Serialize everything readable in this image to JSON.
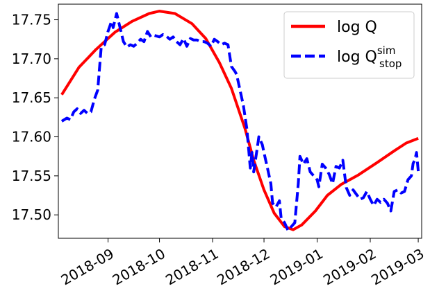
{
  "chart_data": {
    "type": "line",
    "title": "",
    "xlabel": "",
    "ylabel": "",
    "xlim": [
      "2018-08-03",
      "2019-03-03"
    ],
    "ylim": [
      17.47,
      17.77
    ],
    "grid": false,
    "legend_position": "top-right",
    "x_ticks": [
      "2018-09-01",
      "2018-10-01",
      "2018-11-01",
      "2018-12-01",
      "2019-01-01",
      "2019-02-01",
      "2019-03-01"
    ],
    "x_tick_labels": [
      "2018-09",
      "2018-10",
      "2018-11",
      "2018-12",
      "2019-01",
      "2019-02",
      "2019-03"
    ],
    "y_ticks": [
      17.5,
      17.55,
      17.6,
      17.65,
      17.7,
      17.75
    ],
    "y_tick_labels": [
      "17.50",
      "17.55",
      "17.60",
      "17.65",
      "17.70",
      "17.75"
    ],
    "series": [
      {
        "name": "log Q",
        "color": "#ff0000",
        "style": "solid",
        "points": [
          [
            "2018-08-05",
            17.654
          ],
          [
            "2018-08-15",
            17.689
          ],
          [
            "2018-08-25",
            17.712
          ],
          [
            "2018-09-05",
            17.734
          ],
          [
            "2018-09-15",
            17.748
          ],
          [
            "2018-09-25",
            17.758
          ],
          [
            "2018-10-01",
            17.761
          ],
          [
            "2018-10-10",
            17.758
          ],
          [
            "2018-10-20",
            17.745
          ],
          [
            "2018-10-28",
            17.726
          ],
          [
            "2018-11-05",
            17.695
          ],
          [
            "2018-11-12",
            17.662
          ],
          [
            "2018-11-20",
            17.61
          ],
          [
            "2018-11-25",
            17.57
          ],
          [
            "2018-12-01",
            17.532
          ],
          [
            "2018-12-07",
            17.502
          ],
          [
            "2018-12-13",
            17.485
          ],
          [
            "2018-12-18",
            17.481
          ],
          [
            "2018-12-23",
            17.487
          ],
          [
            "2018-12-31",
            17.505
          ],
          [
            "2019-01-07",
            17.525
          ],
          [
            "2019-01-15",
            17.539
          ],
          [
            "2019-01-25",
            17.551
          ],
          [
            "2019-02-05",
            17.567
          ],
          [
            "2019-02-15",
            17.582
          ],
          [
            "2019-02-22",
            17.592
          ],
          [
            "2019-03-01",
            17.598
          ]
        ]
      },
      {
        "name": "log Q",
        "name_sup": "sim",
        "name_sub": "stop",
        "color": "#0000ff",
        "style": "dashed",
        "points": [
          [
            "2018-08-05",
            17.62
          ],
          [
            "2018-08-08",
            17.624
          ],
          [
            "2018-08-10",
            17.622
          ],
          [
            "2018-08-12",
            17.632
          ],
          [
            "2018-08-14",
            17.636
          ],
          [
            "2018-08-16",
            17.63
          ],
          [
            "2018-08-18",
            17.634
          ],
          [
            "2018-08-20",
            17.63
          ],
          [
            "2018-08-22",
            17.632
          ],
          [
            "2018-08-24",
            17.648
          ],
          [
            "2018-08-26",
            17.66
          ],
          [
            "2018-08-28",
            17.715
          ],
          [
            "2018-08-30",
            17.718
          ],
          [
            "2018-09-01",
            17.735
          ],
          [
            "2018-09-03",
            17.748
          ],
          [
            "2018-09-04",
            17.74
          ],
          [
            "2018-09-06",
            17.758
          ],
          [
            "2018-09-08",
            17.74
          ],
          [
            "2018-09-10",
            17.722
          ],
          [
            "2018-09-12",
            17.715
          ],
          [
            "2018-09-14",
            17.718
          ],
          [
            "2018-09-16",
            17.716
          ],
          [
            "2018-09-18",
            17.72
          ],
          [
            "2018-09-20",
            17.725
          ],
          [
            "2018-09-22",
            17.722
          ],
          [
            "2018-09-24",
            17.735
          ],
          [
            "2018-09-26",
            17.728
          ],
          [
            "2018-09-28",
            17.73
          ],
          [
            "2018-10-01",
            17.728
          ],
          [
            "2018-10-03",
            17.731
          ],
          [
            "2018-10-05",
            17.729
          ],
          [
            "2018-10-07",
            17.725
          ],
          [
            "2018-10-09",
            17.728
          ],
          [
            "2018-10-11",
            17.722
          ],
          [
            "2018-10-13",
            17.718
          ],
          [
            "2018-10-15",
            17.726
          ],
          [
            "2018-10-17",
            17.716
          ],
          [
            "2018-10-19",
            17.726
          ],
          [
            "2018-10-21",
            17.724
          ],
          [
            "2018-10-23",
            17.724
          ],
          [
            "2018-10-25",
            17.722
          ],
          [
            "2018-10-27",
            17.722
          ],
          [
            "2018-10-29",
            17.72
          ],
          [
            "2018-10-31",
            17.716
          ],
          [
            "2018-11-02",
            17.725
          ],
          [
            "2018-11-04",
            17.722
          ],
          [
            "2018-11-06",
            17.718
          ],
          [
            "2018-11-08",
            17.72
          ],
          [
            "2018-11-10",
            17.718
          ],
          [
            "2018-11-12",
            17.69
          ],
          [
            "2018-11-14",
            17.684
          ],
          [
            "2018-11-15",
            17.68
          ],
          [
            "2018-11-17",
            17.66
          ],
          [
            "2018-11-19",
            17.64
          ],
          [
            "2018-11-21",
            17.61
          ],
          [
            "2018-11-23",
            17.56
          ],
          [
            "2018-11-24",
            17.58
          ],
          [
            "2018-11-25",
            17.555
          ],
          [
            "2018-11-27",
            17.585
          ],
          [
            "2018-11-28",
            17.6
          ],
          [
            "2018-11-30",
            17.59
          ],
          [
            "2018-12-01",
            17.58
          ],
          [
            "2018-12-03",
            17.56
          ],
          [
            "2018-12-05",
            17.54
          ],
          [
            "2018-12-06",
            17.515
          ],
          [
            "2018-12-08",
            17.51
          ],
          [
            "2018-12-10",
            17.518
          ],
          [
            "2018-12-11",
            17.496
          ],
          [
            "2018-12-13",
            17.49
          ],
          [
            "2018-12-15",
            17.48
          ],
          [
            "2018-12-17",
            17.485
          ],
          [
            "2018-12-19",
            17.49
          ],
          [
            "2018-12-21",
            17.54
          ],
          [
            "2018-12-22",
            17.575
          ],
          [
            "2018-12-24",
            17.565
          ],
          [
            "2018-12-26",
            17.572
          ],
          [
            "2018-12-28",
            17.555
          ],
          [
            "2018-12-30",
            17.55
          ],
          [
            "2019-01-01",
            17.545
          ],
          [
            "2019-01-02",
            17.536
          ],
          [
            "2019-01-04",
            17.565
          ],
          [
            "2019-01-06",
            17.56
          ],
          [
            "2019-01-08",
            17.552
          ],
          [
            "2019-01-10",
            17.54
          ],
          [
            "2019-01-12",
            17.562
          ],
          [
            "2019-01-14",
            17.56
          ],
          [
            "2019-01-16",
            17.57
          ],
          [
            "2019-01-18",
            17.535
          ],
          [
            "2019-01-20",
            17.525
          ],
          [
            "2019-01-22",
            17.532
          ],
          [
            "2019-01-24",
            17.526
          ],
          [
            "2019-01-26",
            17.52
          ],
          [
            "2019-01-28",
            17.522
          ],
          [
            "2019-01-30",
            17.53
          ],
          [
            "2019-02-01",
            17.52
          ],
          [
            "2019-02-03",
            17.512
          ],
          [
            "2019-02-05",
            17.52
          ],
          [
            "2019-02-07",
            17.516
          ],
          [
            "2019-02-09",
            17.52
          ],
          [
            "2019-02-11",
            17.515
          ],
          [
            "2019-02-13",
            17.505
          ],
          [
            "2019-02-15",
            17.53
          ],
          [
            "2019-02-17",
            17.532
          ],
          [
            "2019-02-19",
            17.528
          ],
          [
            "2019-02-21",
            17.53
          ],
          [
            "2019-02-23",
            17.545
          ],
          [
            "2019-02-25",
            17.55
          ],
          [
            "2019-02-26",
            17.566
          ],
          [
            "2019-02-27",
            17.57
          ],
          [
            "2019-02-28",
            17.58
          ],
          [
            "2019-03-01",
            17.556
          ]
        ]
      }
    ]
  }
}
